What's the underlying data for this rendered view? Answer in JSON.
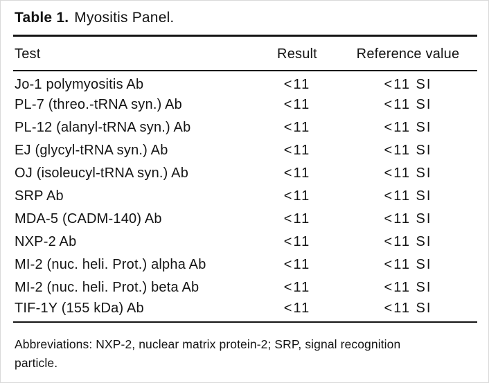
{
  "title": {
    "label": "Table 1.",
    "caption": "Myositis Panel."
  },
  "table": {
    "columns": [
      "Test",
      "Result",
      "Reference value"
    ],
    "rows": [
      {
        "test": "Jo-1 polymyositis Ab",
        "result": "<11",
        "reference": "<11 SI"
      },
      {
        "test": "PL-7 (threo.-tRNA syn.) Ab",
        "result": "<11",
        "reference": "<11 SI"
      },
      {
        "test": "PL-12 (alanyl-tRNA syn.) Ab",
        "result": "<11",
        "reference": "<11 SI"
      },
      {
        "test": "EJ (glycyl-tRNA syn.) Ab",
        "result": "<11",
        "reference": "<11 SI"
      },
      {
        "test": "OJ (isoleucyl-tRNA syn.) Ab",
        "result": "<11",
        "reference": "<11 SI"
      },
      {
        "test": "SRP Ab",
        "result": "<11",
        "reference": "<11 SI"
      },
      {
        "test": "MDA-5 (CADM-140) Ab",
        "result": "<11",
        "reference": "<11 SI"
      },
      {
        "test": "NXP-2 Ab",
        "result": "<11",
        "reference": "<11 SI"
      },
      {
        "test": "MI-2 (nuc. heli. Prot.) alpha Ab",
        "result": "<11",
        "reference": "<11 SI"
      },
      {
        "test": "MI-2 (nuc. heli. Prot.) beta Ab",
        "result": "<11",
        "reference": "<11 SI"
      },
      {
        "test": "TIF-1Y (155 kDa) Ab",
        "result": "<11",
        "reference": "<11 SI"
      }
    ]
  },
  "footnote": "Abbreviations: NXP-2, nuclear matrix protein-2; SRP, signal recognition particle.",
  "colors": {
    "text": "#141414",
    "rule": "#141414",
    "background": "#ffffff"
  }
}
